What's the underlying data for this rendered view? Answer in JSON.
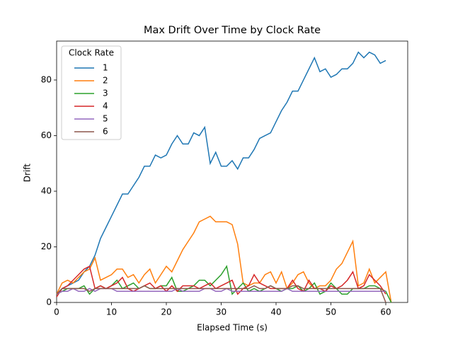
{
  "chart_data": {
    "type": "line",
    "title": "Max Drift Over Time by Clock Rate",
    "x_label": "Elapsed Time (s)",
    "y_label": "Drift",
    "legend_title": "Clock Rate",
    "legend": "upper left",
    "x": [
      0,
      1,
      2,
      3,
      4,
      5,
      6,
      7,
      8,
      9,
      10,
      11,
      12,
      13,
      14,
      15,
      16,
      17,
      18,
      19,
      20,
      21,
      22,
      23,
      24,
      25,
      26,
      27,
      28,
      29,
      30,
      31,
      32,
      33,
      34,
      35,
      36,
      37,
      38,
      39,
      40,
      41,
      42,
      43,
      44,
      45,
      46,
      47,
      48,
      49,
      50,
      51,
      52,
      53,
      54,
      55,
      56,
      57,
      58,
      59,
      60,
      61
    ],
    "xlim": [
      0,
      64
    ],
    "ylim": [
      0,
      94
    ],
    "xticks": [
      0,
      10,
      20,
      30,
      40,
      50,
      60
    ],
    "yticks": [
      0,
      20,
      40,
      60,
      80
    ],
    "series": [
      {
        "name": "1",
        "color": "#1f77b4",
        "values": [
          3,
          5,
          6,
          7,
          8,
          11,
          13,
          17,
          23,
          27,
          31,
          35,
          39,
          39,
          42,
          45,
          49,
          49,
          53,
          52,
          53,
          57,
          60,
          57,
          57,
          61,
          60,
          63,
          50,
          54,
          49,
          49,
          51,
          48,
          52,
          52,
          55,
          59,
          60,
          61,
          65,
          69,
          72,
          76,
          76,
          80,
          84,
          88,
          83,
          84,
          81,
          82,
          84,
          84,
          86,
          90,
          88,
          90,
          89,
          86,
          87,
          null
        ]
      },
      {
        "name": "2",
        "color": "#ff7f0e",
        "values": [
          3,
          7,
          8,
          7,
          9,
          11,
          12,
          16,
          8,
          9,
          10,
          12,
          12,
          9,
          10,
          7,
          10,
          12,
          7,
          10,
          13,
          11,
          15,
          19,
          22,
          25,
          29,
          30,
          31,
          29,
          29,
          29,
          28,
          21,
          7,
          6,
          7,
          7,
          10,
          11,
          7,
          11,
          5,
          7,
          10,
          11,
          7,
          5,
          6,
          6,
          8,
          12,
          14,
          18,
          22,
          6,
          7,
          12,
          7,
          9,
          11,
          0
        ]
      },
      {
        "name": "3",
        "color": "#2ca02c",
        "values": [
          3,
          4,
          5,
          5,
          5,
          6,
          3,
          5,
          6,
          5,
          6,
          8,
          5,
          6,
          7,
          5,
          6,
          5,
          5,
          6,
          6,
          9,
          4,
          4,
          5,
          6,
          8,
          8,
          6,
          8,
          10,
          13,
          3,
          5,
          7,
          4,
          5,
          4,
          5,
          6,
          5,
          4,
          5,
          5,
          6,
          4,
          5,
          7,
          3,
          4,
          7,
          5,
          3,
          3,
          5,
          5,
          5,
          6,
          6,
          5,
          4,
          0
        ]
      },
      {
        "name": "4",
        "color": "#d62728",
        "values": [
          2,
          5,
          6,
          8,
          10,
          12,
          13,
          5,
          6,
          5,
          6,
          7,
          9,
          5,
          4,
          5,
          6,
          7,
          5,
          6,
          4,
          6,
          4,
          6,
          6,
          6,
          5,
          6,
          7,
          5,
          6,
          7,
          8,
          3,
          5,
          6,
          10,
          7,
          6,
          5,
          5,
          5,
          5,
          8,
          5,
          4,
          8,
          5,
          5,
          4,
          6,
          5,
          6,
          8,
          11,
          5,
          6,
          10,
          8,
          6,
          3,
          null
        ]
      },
      {
        "name": "5",
        "color": "#9467bd",
        "values": [
          3,
          4,
          4,
          5,
          4,
          4,
          5,
          4,
          5,
          5,
          5,
          4,
          4,
          4,
          4,
          4,
          4,
          4,
          4,
          4,
          4,
          4,
          5,
          4,
          4,
          4,
          4,
          5,
          5,
          4,
          4,
          5,
          4,
          4,
          4,
          4,
          4,
          4,
          4,
          4,
          4,
          4,
          5,
          4,
          4,
          4,
          4,
          4,
          4,
          4,
          4,
          4,
          4,
          4,
          4,
          4,
          4,
          4,
          4,
          4,
          4,
          null
        ]
      },
      {
        "name": "6",
        "color": "#8c564b",
        "values": [
          3,
          5,
          5,
          5,
          5,
          5,
          4,
          5,
          5,
          5,
          5,
          5,
          5,
          5,
          5,
          5,
          6,
          5,
          5,
          5,
          5,
          5,
          5,
          5,
          5,
          5,
          5,
          5,
          5,
          5,
          5,
          5,
          5,
          5,
          5,
          5,
          6,
          5,
          5,
          6,
          5,
          5,
          5,
          6,
          6,
          5,
          5,
          5,
          5,
          5,
          5,
          5,
          5,
          5,
          5,
          5,
          5,
          5,
          5,
          5,
          0,
          null
        ]
      }
    ]
  }
}
